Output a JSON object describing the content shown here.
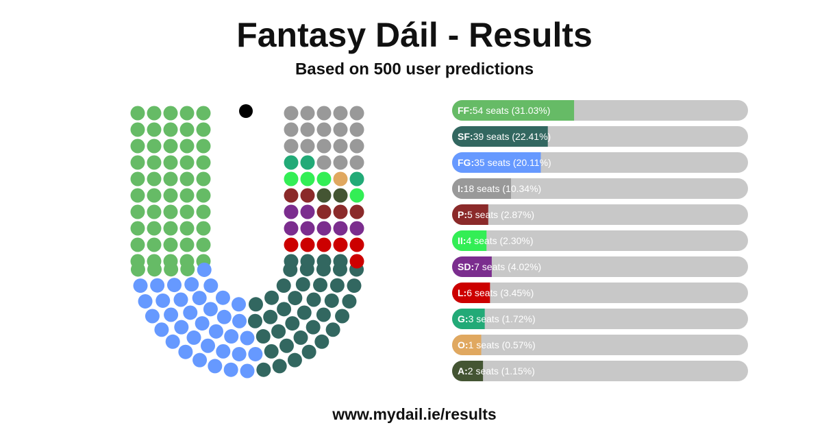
{
  "chart_data": {
    "type": "parliament",
    "title": "Fantasy Dáil - Results",
    "subtitle": "Based on 500 user predictions",
    "footer": "www.mydail.ie/results",
    "categories": [
      "FF:",
      "SF:",
      "FG:",
      "I:",
      "P:",
      "II:",
      "SD:",
      "L:",
      "G:",
      "O:",
      "A:"
    ],
    "seats": [
      54,
      39,
      35,
      18,
      5,
      4,
      7,
      6,
      3,
      1,
      2
    ],
    "values": [
      31.03,
      22.41,
      20.11,
      10.34,
      2.87,
      2.3,
      4.02,
      3.45,
      1.72,
      0.57,
      1.15
    ],
    "value_labels": [
      "54 seats (31.03%)",
      "39 seats (22.41%)",
      "35 seats (20.11%)",
      "18 seats (10.34%)",
      "5 seats (2.87%)",
      "4 seats (2.30%)",
      "7 seats (4.02%)",
      "6 seats (3.45%)",
      "3 seats (1.72%)",
      "1 seats (0.57%)",
      "2 seats (1.15%)"
    ],
    "colors": [
      "#66BB66",
      "#326760",
      "#6699FF",
      "#999999",
      "#8B2A2A",
      "#33EE55",
      "#7B2D8E",
      "#CC0000",
      "#22AA77",
      "#E0A860",
      "#445533"
    ],
    "seat_order": [
      0,
      2,
      1,
      7,
      6,
      4,
      10,
      5,
      9,
      8,
      3
    ]
  }
}
